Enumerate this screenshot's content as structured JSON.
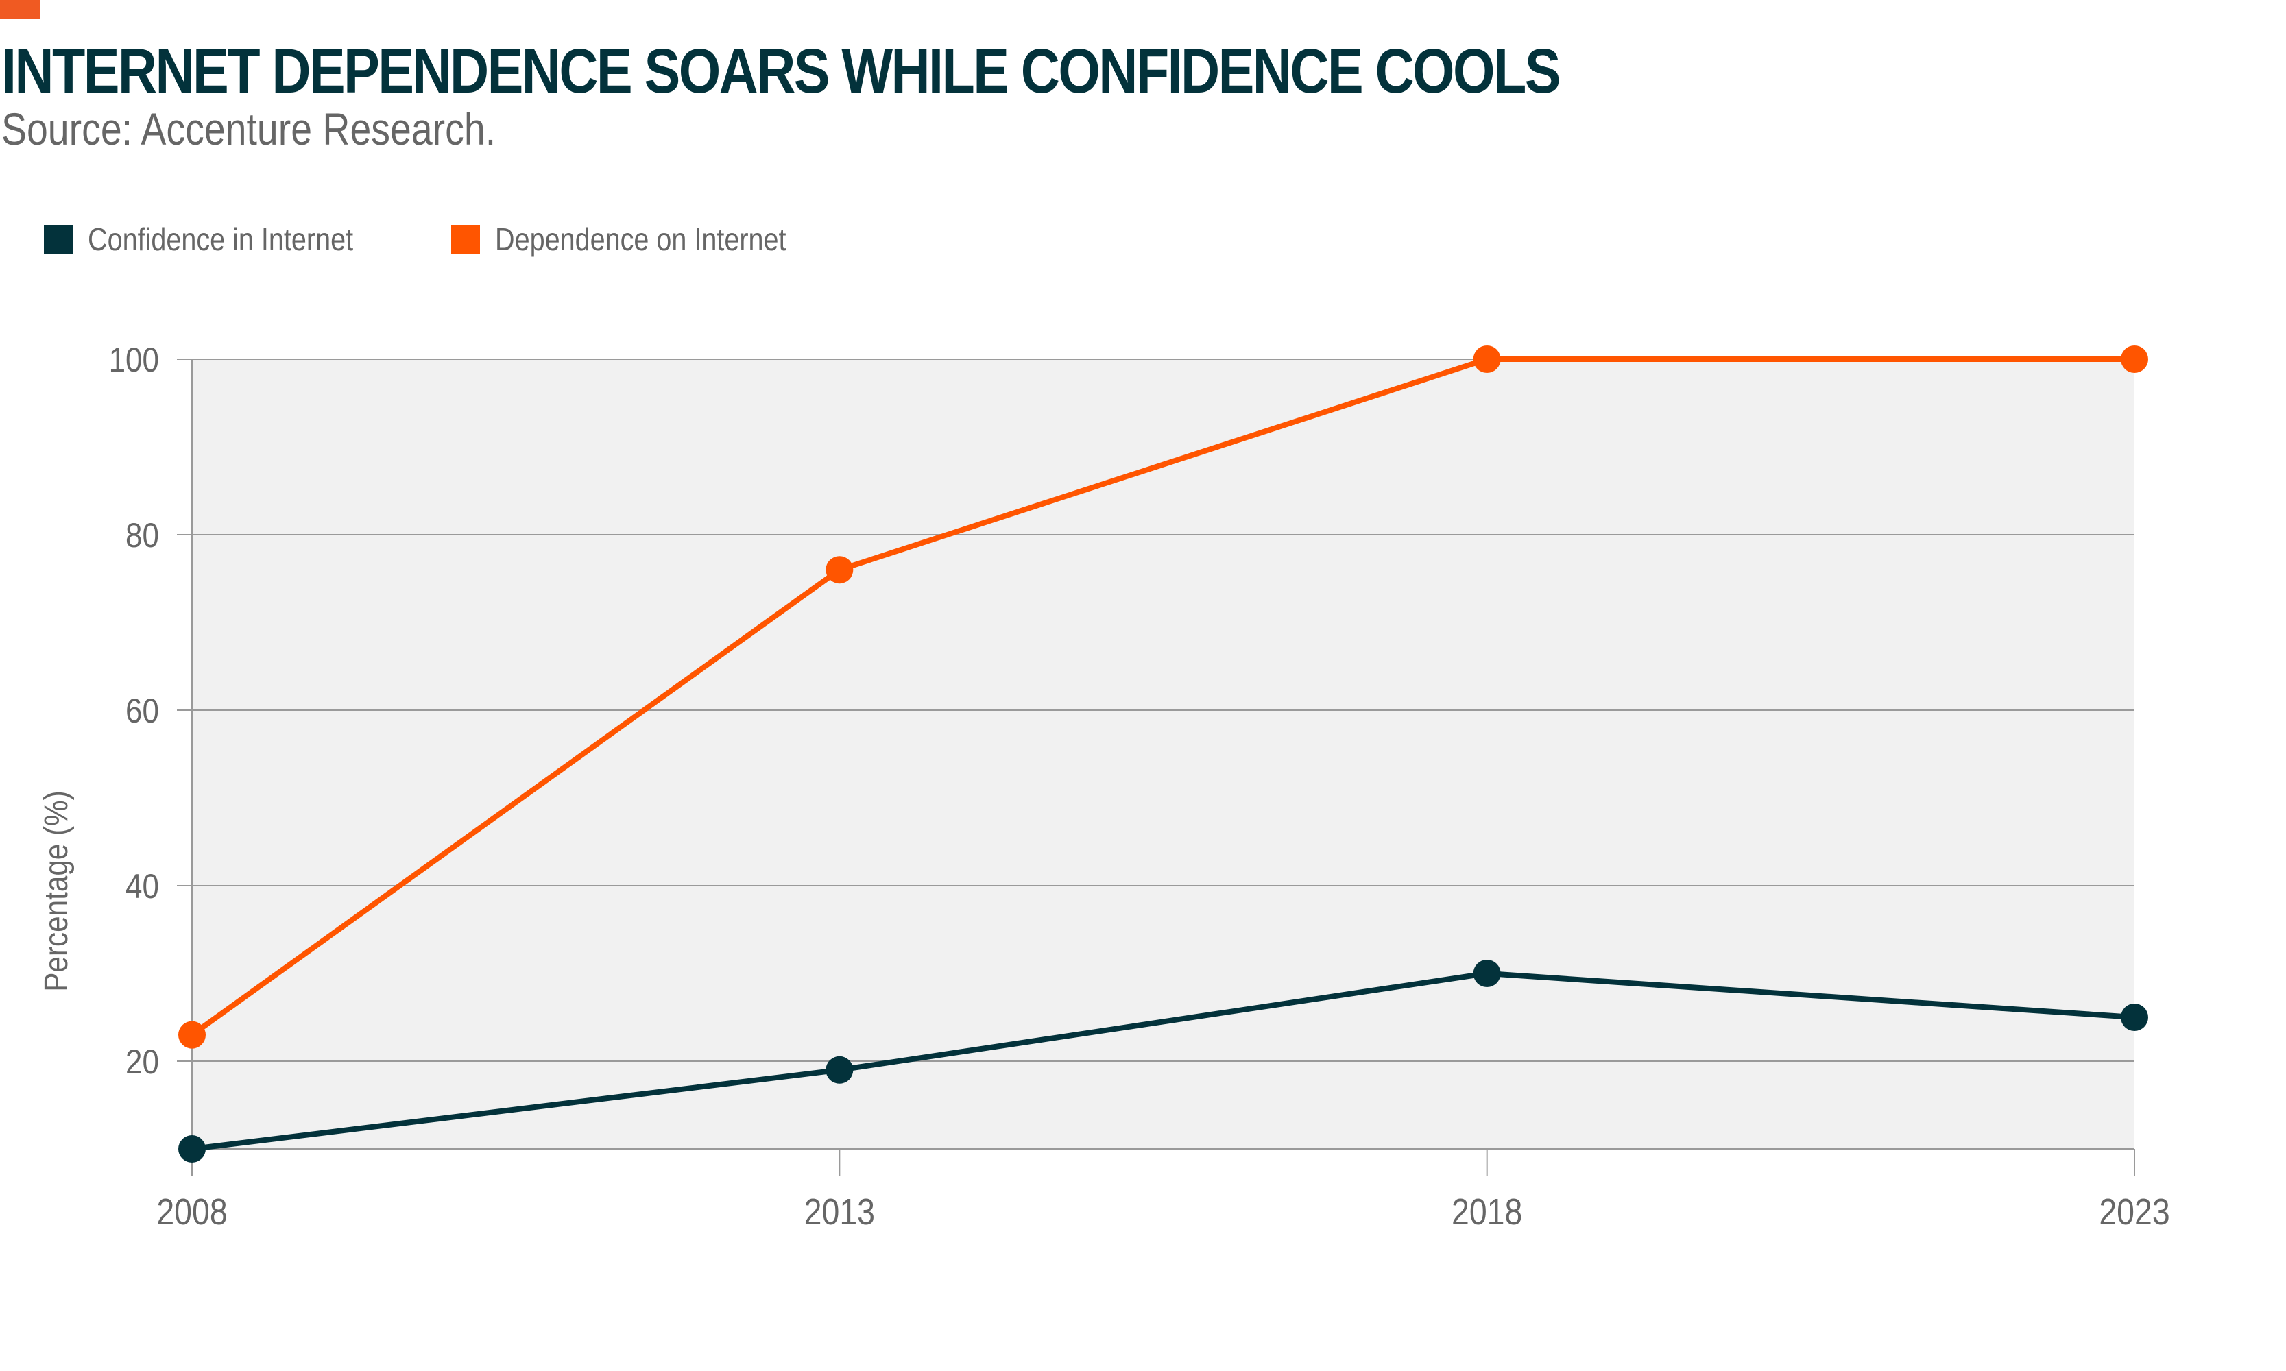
{
  "header": {
    "title": "INTERNET DEPENDENCE SOARS WHILE CONFIDENCE COOLS",
    "source": "Source: Accenture Research."
  },
  "colors": {
    "accent": "#F05A22",
    "confidence": "#03323B",
    "dependence": "#FF5500",
    "plot_background": "#F1F1F1",
    "grid": "#9A9A9A",
    "text": "#666666"
  },
  "chart_data": {
    "type": "line",
    "title": "INTERNET DEPENDENCE SOARS WHILE CONFIDENCE COOLS",
    "subtitle": "Source: Accenture Research.",
    "xlabel": "",
    "ylabel": "Percentage (%)",
    "categories": [
      "2008",
      "2013",
      "2018",
      "2023"
    ],
    "ylim": [
      10,
      100
    ],
    "yticks": [
      20,
      40,
      60,
      80,
      100
    ],
    "ytick_labels": [
      "20",
      "40",
      "60",
      "80",
      "100"
    ],
    "grid": true,
    "legend_position": "top-left",
    "series": [
      {
        "name": "Confidence in Internet",
        "color": "#03323B",
        "values": [
          10,
          19,
          30,
          25
        ]
      },
      {
        "name": "Dependence on Internet",
        "color": "#FF5500",
        "values": [
          23,
          76,
          100,
          100
        ]
      }
    ]
  }
}
